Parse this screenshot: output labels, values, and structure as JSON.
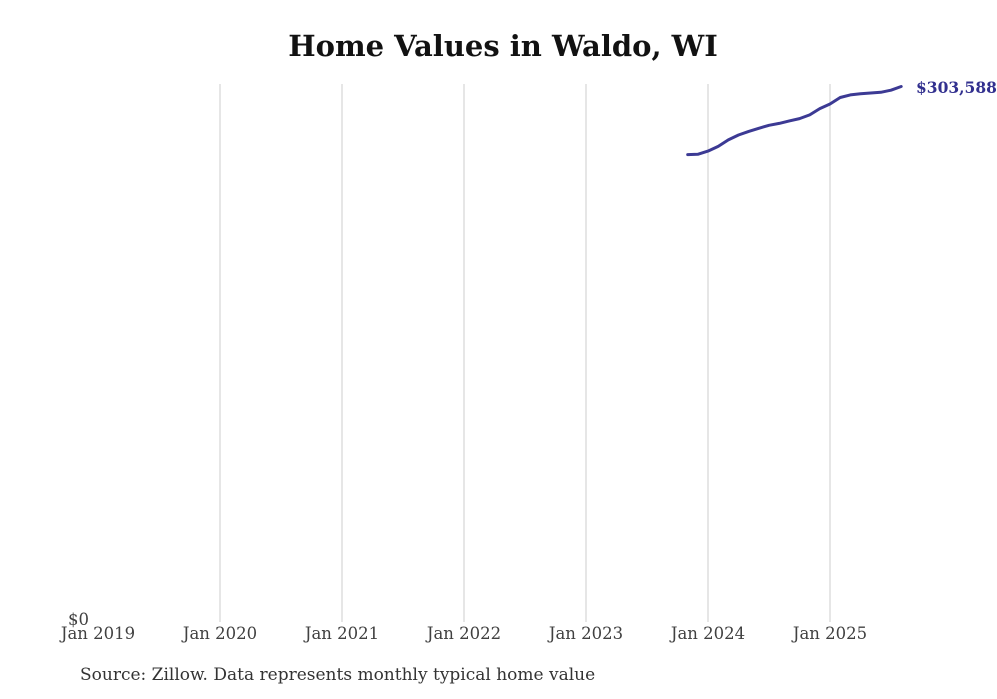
{
  "colors": {
    "line": "#3c3a94",
    "end_label": "#32308f",
    "gridline": "#cccccc",
    "axis_text": "#414141",
    "title_text": "#121212",
    "source_text": "#333333"
  },
  "source_note": "Source: Zillow. Data represents monthly typical home value",
  "chart_data": {
    "type": "line",
    "title": "Home Values in Waldo, WI",
    "xlabel": "",
    "ylabel": "",
    "legend": "none",
    "grid": "vertical-only",
    "ylim": [
      0,
      305000
    ],
    "x_ticks": [
      {
        "label": "Jan 2019",
        "month": "2019-01",
        "gridline": false
      },
      {
        "label": "Jan 2020",
        "month": "2020-01",
        "gridline": true
      },
      {
        "label": "Jan 2021",
        "month": "2021-01",
        "gridline": true
      },
      {
        "label": "Jan 2022",
        "month": "2022-01",
        "gridline": true
      },
      {
        "label": "Jan 2023",
        "month": "2023-01",
        "gridline": true
      },
      {
        "label": "Jan 2024",
        "month": "2024-01",
        "gridline": true
      },
      {
        "label": "Jan 2025",
        "month": "2025-01",
        "gridline": true
      }
    ],
    "y_ticks": [
      {
        "label": "$0",
        "value": 0
      }
    ],
    "series": [
      {
        "name": "Monthly typical home value",
        "color": "#3c3a94",
        "points": [
          {
            "month": "2023-11",
            "value": 264800
          },
          {
            "month": "2023-12",
            "value": 265000
          },
          {
            "month": "2024-01",
            "value": 266800
          },
          {
            "month": "2024-02",
            "value": 269500
          },
          {
            "month": "2024-03",
            "value": 273200
          },
          {
            "month": "2024-04",
            "value": 276000
          },
          {
            "month": "2024-05",
            "value": 278000
          },
          {
            "month": "2024-06",
            "value": 279800
          },
          {
            "month": "2024-07",
            "value": 281500
          },
          {
            "month": "2024-08",
            "value": 282600
          },
          {
            "month": "2024-09",
            "value": 284000
          },
          {
            "month": "2024-10",
            "value": 285300
          },
          {
            "month": "2024-11",
            "value": 287400
          },
          {
            "month": "2024-12",
            "value": 291000
          },
          {
            "month": "2025-01",
            "value": 293600
          },
          {
            "month": "2025-02",
            "value": 297300
          },
          {
            "month": "2025-03",
            "value": 298800
          },
          {
            "month": "2025-04",
            "value": 299500
          },
          {
            "month": "2025-05",
            "value": 299900
          },
          {
            "month": "2025-06",
            "value": 300300
          },
          {
            "month": "2025-07",
            "value": 301500
          },
          {
            "month": "2025-08",
            "value": 303588
          }
        ]
      }
    ],
    "end_label": {
      "text": "$303,588",
      "value": 303588
    }
  }
}
